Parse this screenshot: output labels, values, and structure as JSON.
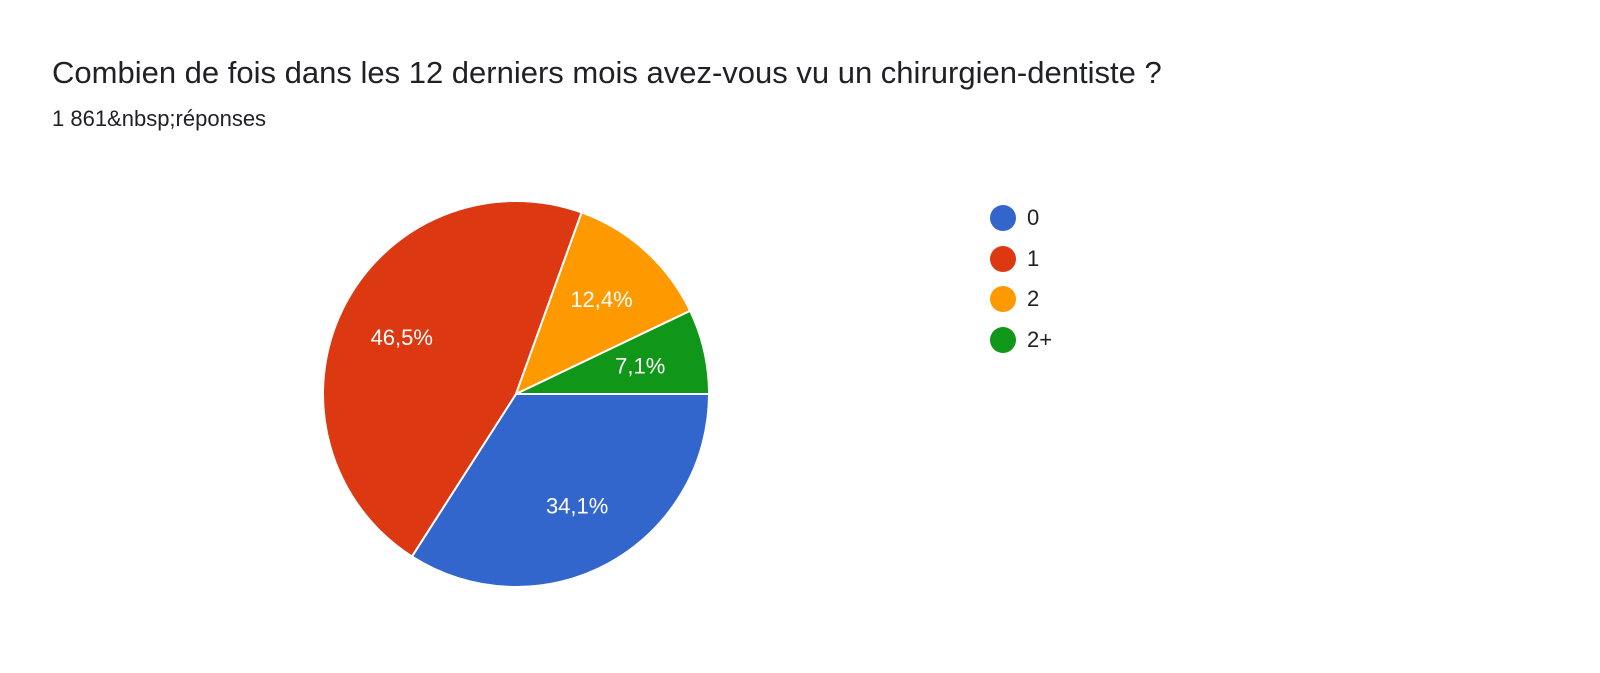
{
  "header": {
    "title": "Combien de fois dans les 12 derniers mois avez-vous vu un chirurgien-dentiste ?",
    "responses": "1 861&nbsp;réponses"
  },
  "chart_data": {
    "type": "pie",
    "categories": [
      "0",
      "1",
      "2",
      "2+"
    ],
    "values": [
      34.1,
      46.5,
      12.4,
      7.1
    ],
    "labels": [
      "34,1%",
      "46,5%",
      "12,4%",
      "7,1%"
    ],
    "colors": [
      "#3366cc",
      "#dc3912",
      "#ff9900",
      "#109618"
    ],
    "legend_position": "right",
    "start": "3 o'clock",
    "direction": "clockwise"
  }
}
